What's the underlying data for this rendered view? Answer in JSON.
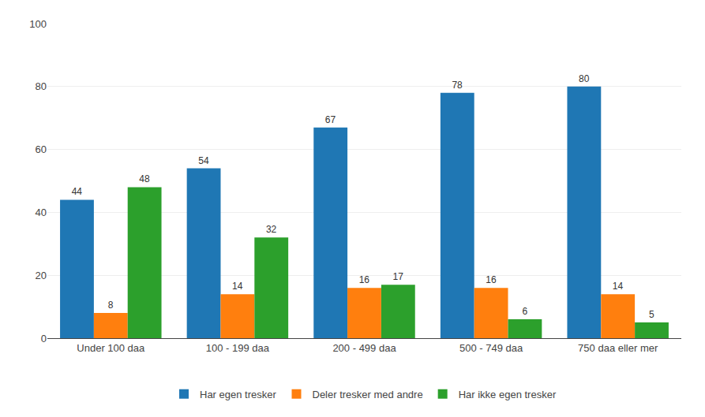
{
  "chart_data": {
    "type": "bar",
    "categories": [
      "Under 100 daa",
      "100 - 199 daa",
      "200 - 499 daa",
      "500 - 749 daa",
      "750 daa eller mer"
    ],
    "series": [
      {
        "name": "Har egen tresker",
        "values": [
          44,
          54,
          67,
          78,
          80
        ]
      },
      {
        "name": "Deler tresker med andre",
        "values": [
          8,
          14,
          16,
          16,
          14
        ]
      },
      {
        "name": "Har ikke egen tresker",
        "values": [
          48,
          32,
          17,
          6,
          5
        ]
      }
    ],
    "ylim": [
      0,
      100
    ],
    "yticks": [
      0,
      20,
      40,
      60,
      80,
      100
    ],
    "grid": true,
    "legend": "bottom",
    "data_labels": true
  }
}
